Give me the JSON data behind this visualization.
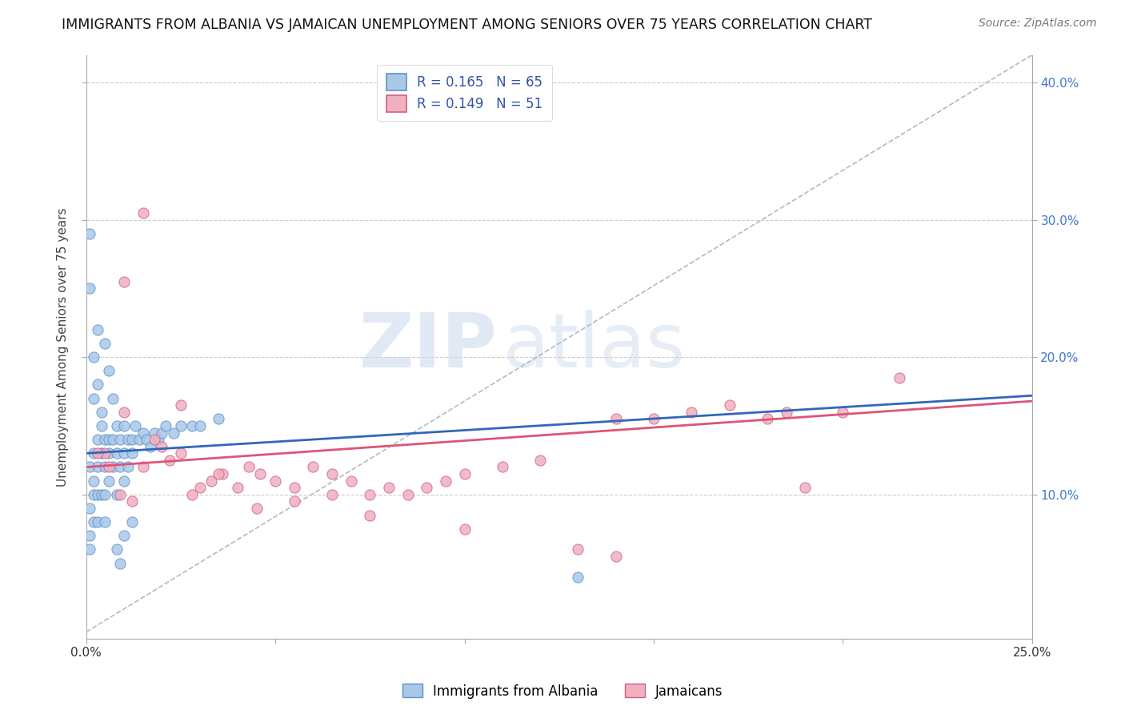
{
  "title": "IMMIGRANTS FROM ALBANIA VS JAMAICAN UNEMPLOYMENT AMONG SENIORS OVER 75 YEARS CORRELATION CHART",
  "source": "Source: ZipAtlas.com",
  "ylabel": "Unemployment Among Seniors over 75 years",
  "xlim": [
    0.0,
    0.25
  ],
  "ylim": [
    -0.005,
    0.42
  ],
  "xticks": [
    0.0,
    0.05,
    0.1,
    0.15,
    0.2,
    0.25
  ],
  "xtick_labels": [
    "0.0%",
    "",
    "",
    "",
    "",
    "25.0%"
  ],
  "yticks_right": [
    0.1,
    0.2,
    0.3,
    0.4
  ],
  "ytick_labels_right": [
    "10.0%",
    "20.0%",
    "30.0%",
    "40.0%"
  ],
  "blue_scatter_color": "#a8c8e8",
  "blue_edge_color": "#6090c8",
  "pink_scatter_color": "#f0b0c0",
  "pink_edge_color": "#d06080",
  "blue_line_color": "#3366bb",
  "pink_line_color": "#dd5577",
  "diag_line_color": "#b0b8cc",
  "R_blue": 0.165,
  "N_blue": 65,
  "R_pink": 0.149,
  "N_pink": 51,
  "legend_label_blue": "Immigrants from Albania",
  "legend_label_pink": "Jamaicans",
  "watermark_zip": "ZIP",
  "watermark_atlas": "atlas",
  "background_color": "#ffffff",
  "grid_color": "#cccccc",
  "blue_x": [
    0.001,
    0.001,
    0.001,
    0.001,
    0.002,
    0.002,
    0.002,
    0.002,
    0.003,
    0.003,
    0.003,
    0.003,
    0.004,
    0.004,
    0.004,
    0.005,
    0.005,
    0.005,
    0.005,
    0.006,
    0.006,
    0.006,
    0.007,
    0.007,
    0.008,
    0.008,
    0.008,
    0.009,
    0.009,
    0.01,
    0.01,
    0.01,
    0.011,
    0.011,
    0.012,
    0.012,
    0.013,
    0.014,
    0.015,
    0.016,
    0.017,
    0.018,
    0.019,
    0.02,
    0.021,
    0.023,
    0.025,
    0.028,
    0.03,
    0.035,
    0.001,
    0.001,
    0.002,
    0.002,
    0.003,
    0.003,
    0.004,
    0.005,
    0.006,
    0.007,
    0.008,
    0.009,
    0.01,
    0.012,
    0.13
  ],
  "blue_y": [
    0.12,
    0.09,
    0.07,
    0.06,
    0.13,
    0.11,
    0.1,
    0.08,
    0.14,
    0.12,
    0.1,
    0.08,
    0.15,
    0.13,
    0.1,
    0.14,
    0.12,
    0.1,
    0.08,
    0.14,
    0.13,
    0.11,
    0.14,
    0.12,
    0.15,
    0.13,
    0.1,
    0.14,
    0.12,
    0.15,
    0.13,
    0.11,
    0.14,
    0.12,
    0.14,
    0.13,
    0.15,
    0.14,
    0.145,
    0.14,
    0.135,
    0.145,
    0.14,
    0.145,
    0.15,
    0.145,
    0.15,
    0.15,
    0.15,
    0.155,
    0.29,
    0.25,
    0.2,
    0.17,
    0.22,
    0.18,
    0.16,
    0.21,
    0.19,
    0.17,
    0.06,
    0.05,
    0.07,
    0.08,
    0.04
  ],
  "pink_x": [
    0.005,
    0.01,
    0.01,
    0.015,
    0.018,
    0.02,
    0.022,
    0.025,
    0.028,
    0.03,
    0.033,
    0.036,
    0.04,
    0.043,
    0.046,
    0.05,
    0.055,
    0.06,
    0.065,
    0.07,
    0.075,
    0.08,
    0.085,
    0.09,
    0.095,
    0.1,
    0.11,
    0.12,
    0.13,
    0.14,
    0.15,
    0.16,
    0.17,
    0.18,
    0.19,
    0.2,
    0.003,
    0.006,
    0.009,
    0.012,
    0.015,
    0.025,
    0.035,
    0.045,
    0.055,
    0.065,
    0.075,
    0.1,
    0.14,
    0.185,
    0.215
  ],
  "pink_y": [
    0.13,
    0.16,
    0.255,
    0.305,
    0.14,
    0.135,
    0.125,
    0.13,
    0.1,
    0.105,
    0.11,
    0.115,
    0.105,
    0.12,
    0.115,
    0.11,
    0.105,
    0.12,
    0.115,
    0.11,
    0.1,
    0.105,
    0.1,
    0.105,
    0.11,
    0.115,
    0.12,
    0.125,
    0.06,
    0.155,
    0.155,
    0.16,
    0.165,
    0.155,
    0.105,
    0.16,
    0.13,
    0.12,
    0.1,
    0.095,
    0.12,
    0.165,
    0.115,
    0.09,
    0.095,
    0.1,
    0.085,
    0.075,
    0.055,
    0.16,
    0.185
  ]
}
